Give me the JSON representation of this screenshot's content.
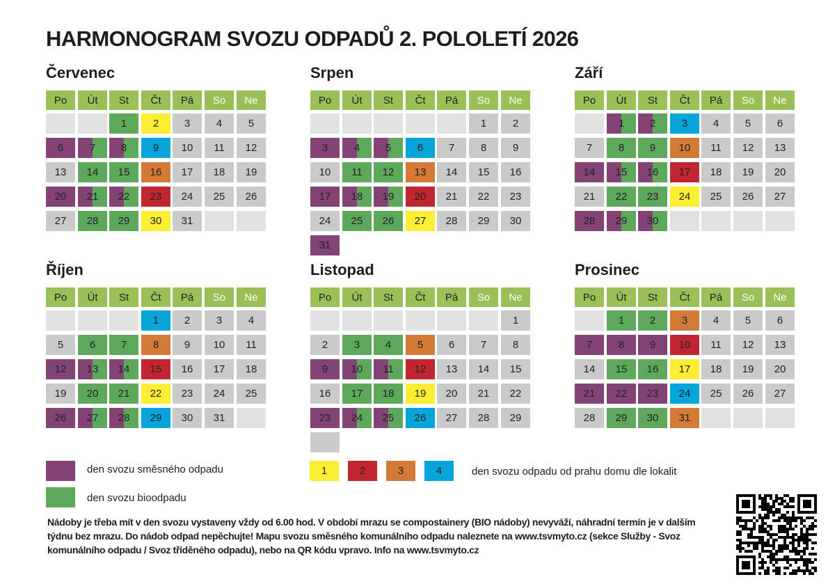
{
  "title": "HARMONOGRAM SVOZU ODPADŮ 2. POLOLETÍ 2026",
  "weekdays": [
    "Po",
    "Út",
    "St",
    "Čt",
    "Pá",
    "So",
    "Ne"
  ],
  "colors": {
    "header": "#9bc058",
    "empty": "#e2e2e2",
    "gray": "#cacaca",
    "bio": "#5ea85c",
    "mixed": "#834374",
    "yellow": "#fcee33",
    "red": "#bf262f",
    "orange": "#d27a36",
    "blue": "#05a5d9"
  },
  "cell_types": {
    "E": "empty",
    "G": "no collection",
    "B": "bio waste",
    "M": "mixed waste",
    "S": "mixed + bio",
    "Y": "route 1",
    "R": "route 2",
    "O": "route 3",
    "C": "route 4"
  },
  "months": [
    {
      "name": "Červenec",
      "weeks": [
        [
          [
            "",
            "E"
          ],
          [
            "",
            "E"
          ],
          [
            "1",
            "B"
          ],
          [
            "2",
            "Y"
          ],
          [
            "3",
            "G"
          ],
          [
            "4",
            "G"
          ],
          [
            "5",
            "G"
          ]
        ],
        [
          [
            "6",
            "M"
          ],
          [
            "7",
            "S"
          ],
          [
            "8",
            "S"
          ],
          [
            "9",
            "C"
          ],
          [
            "10",
            "G"
          ],
          [
            "11",
            "G"
          ],
          [
            "12",
            "G"
          ]
        ],
        [
          [
            "13",
            "G"
          ],
          [
            "14",
            "B"
          ],
          [
            "15",
            "B"
          ],
          [
            "16",
            "O"
          ],
          [
            "17",
            "G"
          ],
          [
            "18",
            "G"
          ],
          [
            "19",
            "G"
          ]
        ],
        [
          [
            "20",
            "M"
          ],
          [
            "21",
            "S"
          ],
          [
            "22",
            "S"
          ],
          [
            "23",
            "R"
          ],
          [
            "24",
            "G"
          ],
          [
            "25",
            "G"
          ],
          [
            "26",
            "G"
          ]
        ],
        [
          [
            "27",
            "G"
          ],
          [
            "28",
            "B"
          ],
          [
            "29",
            "B"
          ],
          [
            "30",
            "Y"
          ],
          [
            "31",
            "G"
          ],
          [
            "",
            "E"
          ],
          [
            "",
            "E"
          ]
        ]
      ]
    },
    {
      "name": "Srpen",
      "weeks": [
        [
          [
            "",
            "E"
          ],
          [
            "",
            "E"
          ],
          [
            "",
            "E"
          ],
          [
            "",
            "E"
          ],
          [
            "",
            "E"
          ],
          [
            "1",
            "G"
          ],
          [
            "2",
            "G"
          ]
        ],
        [
          [
            "3",
            "M"
          ],
          [
            "4",
            "S"
          ],
          [
            "5",
            "S"
          ],
          [
            "6",
            "C"
          ],
          [
            "7",
            "G"
          ],
          [
            "8",
            "G"
          ],
          [
            "9",
            "G"
          ]
        ],
        [
          [
            "10",
            "G"
          ],
          [
            "11",
            "B"
          ],
          [
            "12",
            "B"
          ],
          [
            "13",
            "O"
          ],
          [
            "14",
            "G"
          ],
          [
            "15",
            "G"
          ],
          [
            "16",
            "G"
          ]
        ],
        [
          [
            "17",
            "M"
          ],
          [
            "18",
            "S"
          ],
          [
            "19",
            "S"
          ],
          [
            "20",
            "R"
          ],
          [
            "21",
            "G"
          ],
          [
            "22",
            "G"
          ],
          [
            "23",
            "G"
          ]
        ],
        [
          [
            "24",
            "G"
          ],
          [
            "25",
            "B"
          ],
          [
            "26",
            "B"
          ],
          [
            "27",
            "Y"
          ],
          [
            "28",
            "G"
          ],
          [
            "29",
            "G"
          ],
          [
            "30",
            "G"
          ]
        ],
        [
          [
            "31",
            "M"
          ]
        ]
      ]
    },
    {
      "name": "Září",
      "weeks": [
        [
          [
            "",
            "E"
          ],
          [
            "1",
            "S"
          ],
          [
            "2",
            "S"
          ],
          [
            "3",
            "C"
          ],
          [
            "4",
            "G"
          ],
          [
            "5",
            "G"
          ],
          [
            "6",
            "G"
          ]
        ],
        [
          [
            "7",
            "G"
          ],
          [
            "8",
            "B"
          ],
          [
            "9",
            "B"
          ],
          [
            "10",
            "O"
          ],
          [
            "11",
            "G"
          ],
          [
            "12",
            "G"
          ],
          [
            "13",
            "G"
          ]
        ],
        [
          [
            "14",
            "M"
          ],
          [
            "15",
            "S"
          ],
          [
            "16",
            "S"
          ],
          [
            "17",
            "R"
          ],
          [
            "18",
            "G"
          ],
          [
            "19",
            "G"
          ],
          [
            "20",
            "G"
          ]
        ],
        [
          [
            "21",
            "G"
          ],
          [
            "22",
            "B"
          ],
          [
            "23",
            "B"
          ],
          [
            "24",
            "Y"
          ],
          [
            "25",
            "G"
          ],
          [
            "26",
            "G"
          ],
          [
            "27",
            "G"
          ]
        ],
        [
          [
            "28",
            "M"
          ],
          [
            "29",
            "S"
          ],
          [
            "30",
            "S"
          ],
          [
            "",
            "E"
          ],
          [
            "",
            "E"
          ],
          [
            "",
            "E"
          ],
          [
            "",
            "E"
          ]
        ]
      ]
    },
    {
      "name": "Říjen",
      "weeks": [
        [
          [
            "",
            "E"
          ],
          [
            "",
            "E"
          ],
          [
            "",
            "E"
          ],
          [
            "1",
            "C"
          ],
          [
            "2",
            "G"
          ],
          [
            "3",
            "G"
          ],
          [
            "4",
            "G"
          ]
        ],
        [
          [
            "5",
            "G"
          ],
          [
            "6",
            "B"
          ],
          [
            "7",
            "B"
          ],
          [
            "8",
            "O"
          ],
          [
            "9",
            "G"
          ],
          [
            "10",
            "G"
          ],
          [
            "11",
            "G"
          ]
        ],
        [
          [
            "12",
            "M"
          ],
          [
            "13",
            "S"
          ],
          [
            "14",
            "S"
          ],
          [
            "15",
            "R"
          ],
          [
            "16",
            "G"
          ],
          [
            "17",
            "G"
          ],
          [
            "18",
            "G"
          ]
        ],
        [
          [
            "19",
            "G"
          ],
          [
            "20",
            "B"
          ],
          [
            "21",
            "B"
          ],
          [
            "22",
            "Y"
          ],
          [
            "23",
            "G"
          ],
          [
            "24",
            "G"
          ],
          [
            "25",
            "G"
          ]
        ],
        [
          [
            "26",
            "M"
          ],
          [
            "27",
            "S"
          ],
          [
            "28",
            "S"
          ],
          [
            "29",
            "C"
          ],
          [
            "30",
            "G"
          ],
          [
            "31",
            "G"
          ],
          [
            "",
            "E"
          ]
        ]
      ]
    },
    {
      "name": "Listopad",
      "weeks": [
        [
          [
            "",
            "E"
          ],
          [
            "",
            "E"
          ],
          [
            "",
            "E"
          ],
          [
            "",
            "E"
          ],
          [
            "",
            "E"
          ],
          [
            "",
            "E"
          ],
          [
            "1",
            "G"
          ]
        ],
        [
          [
            "2",
            "G"
          ],
          [
            "3",
            "B"
          ],
          [
            "4",
            "B"
          ],
          [
            "5",
            "O"
          ],
          [
            "6",
            "G"
          ],
          [
            "7",
            "G"
          ],
          [
            "8",
            "G"
          ]
        ],
        [
          [
            "9",
            "M"
          ],
          [
            "10",
            "S"
          ],
          [
            "11",
            "S"
          ],
          [
            "12",
            "R"
          ],
          [
            "13",
            "G"
          ],
          [
            "14",
            "G"
          ],
          [
            "15",
            "G"
          ]
        ],
        [
          [
            "16",
            "G"
          ],
          [
            "17",
            "B"
          ],
          [
            "18",
            "B"
          ],
          [
            "19",
            "Y"
          ],
          [
            "20",
            "G"
          ],
          [
            "21",
            "G"
          ],
          [
            "22",
            "G"
          ]
        ],
        [
          [
            "23",
            "M"
          ],
          [
            "24",
            "S"
          ],
          [
            "25",
            "S"
          ],
          [
            "26",
            "C"
          ],
          [
            "27",
            "G"
          ],
          [
            "28",
            "G"
          ],
          [
            "29",
            "G"
          ]
        ],
        [
          [
            "",
            "G"
          ]
        ]
      ]
    },
    {
      "name": "Prosinec",
      "weeks": [
        [
          [
            "",
            "E"
          ],
          [
            "1",
            "B"
          ],
          [
            "2",
            "B"
          ],
          [
            "3",
            "O"
          ],
          [
            "4",
            "G"
          ],
          [
            "5",
            "G"
          ],
          [
            "6",
            "G"
          ]
        ],
        [
          [
            "7",
            "M"
          ],
          [
            "8",
            "M"
          ],
          [
            "9",
            "M"
          ],
          [
            "10",
            "R"
          ],
          [
            "11",
            "G"
          ],
          [
            "12",
            "G"
          ],
          [
            "13",
            "G"
          ]
        ],
        [
          [
            "14",
            "G"
          ],
          [
            "15",
            "B"
          ],
          [
            "16",
            "B"
          ],
          [
            "17",
            "Y"
          ],
          [
            "18",
            "G"
          ],
          [
            "19",
            "G"
          ],
          [
            "20",
            "G"
          ]
        ],
        [
          [
            "21",
            "M"
          ],
          [
            "22",
            "M"
          ],
          [
            "23",
            "M"
          ],
          [
            "24",
            "C"
          ],
          [
            "25",
            "G"
          ],
          [
            "26",
            "G"
          ],
          [
            "27",
            "G"
          ]
        ],
        [
          [
            "28",
            "G"
          ],
          [
            "29",
            "B"
          ],
          [
            "30",
            "B"
          ],
          [
            "31",
            "O"
          ],
          [
            "",
            "E"
          ],
          [
            "",
            "E"
          ],
          [
            "",
            "E"
          ]
        ]
      ]
    }
  ],
  "legend": {
    "mixed": "den svozu směsného odpadu",
    "bio": "den svozu bioodpadu",
    "routes": [
      "1",
      "2",
      "3",
      "4"
    ],
    "routes_text": "den svozu odpadu od prahu domu dle lokalit"
  },
  "note": "Nádoby je třeba mít v den svozu vystaveny vždy od 6.00 hod. V období mrazu se compostainery (BIO nádoby) nevyváží, náhradní termín je v dalším týdnu bez mrazu. Do nádob odpad nepěchujte! Mapu svozu směsného komunálního odpadu naleznete na www.tsvmyto.cz (sekce Služby - Svoz komunálního odpadu / Svoz tříděného odpadu), nebo na QR kódu vpravo. Info na www.tsvmyto.cz",
  "qr_icon": "qr-code"
}
